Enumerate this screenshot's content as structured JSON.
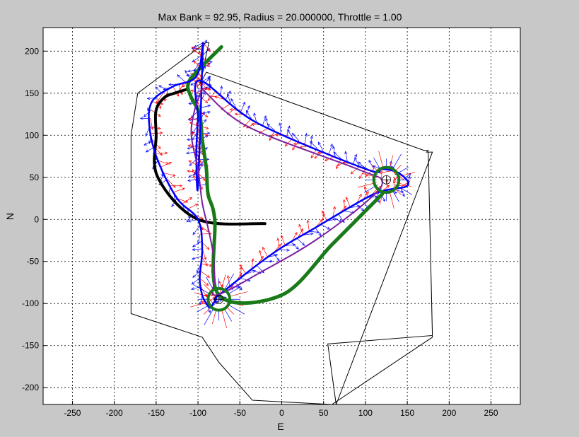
{
  "chart_data": {
    "type": "line",
    "title": "Max Bank = 92.95, Radius = 20.000000, Throttle = 1.00",
    "xlabel": "E",
    "ylabel": "N",
    "xlim": [
      -285,
      285
    ],
    "ylim": [
      -220,
      228
    ],
    "xticks": [
      -250,
      -200,
      -150,
      -100,
      -50,
      0,
      50,
      100,
      150,
      200,
      250
    ],
    "yticks": [
      -200,
      -150,
      -100,
      -50,
      0,
      50,
      100,
      150,
      200
    ],
    "grid": true,
    "colors": {
      "background": "#c8c8c8",
      "axes": "#ffffff",
      "boundary": "#000000",
      "black_path": "#000000",
      "blue_path": "#0000ff",
      "purple_path": "#7a1fa0",
      "green_path": "#1a7a1a",
      "red_vectors": "#ff0000",
      "blue_vectors": "#0000ff",
      "loiter_circle": "#1a7a1a"
    },
    "boundary": {
      "x": [
        -91,
        -172,
        -180,
        -180,
        -95,
        -75,
        -35,
        60,
        180,
        175,
        180,
        55,
        65,
        180,
        173,
        175,
        170,
        -90,
        -98,
        -87,
        -91
      ],
      "y": [
        210,
        150,
        100,
        -112,
        -140,
        -170,
        -215,
        -220,
        -140,
        80,
        -138,
        -148,
        -220,
        80,
        80,
        82,
        82,
        175,
        160,
        210,
        210
      ]
    },
    "series": [
      {
        "name": "",
        "color": "#000000",
        "width": 4,
        "x": [
          -20,
          -100,
          -148,
          -150,
          -150,
          -140,
          -128,
          -112
        ],
        "y": [
          -5,
          0,
          50,
          100,
          130,
          145,
          150,
          155
        ]
      },
      {
        "name": "",
        "color": "#1a7a1a",
        "width": 5,
        "x": [
          -72,
          -102,
          -112,
          -108,
          -98,
          -95,
          -90,
          -88,
          -80,
          -75,
          0,
          60,
          105,
          120
        ],
        "y": [
          205,
          175,
          160,
          145,
          125,
          95,
          60,
          30,
          0,
          -90,
          -90,
          -30,
          15,
          30
        ]
      },
      {
        "name": "",
        "color": "#0000ff",
        "width": 2.5,
        "x": [
          -94,
          -102,
          -130,
          -155,
          -158,
          -148,
          -125,
          -100,
          -95,
          -98,
          -95,
          -90,
          -85,
          -82,
          -78,
          -75,
          -10,
          40,
          110,
          150,
          140,
          120,
          100,
          -30,
          -98,
          -100,
          -102,
          -100,
          -94
        ],
        "y": [
          210,
          170,
          158,
          140,
          110,
          70,
          25,
          0,
          -35,
          -70,
          -90,
          -100,
          -105,
          -100,
          -95,
          -90,
          -40,
          -10,
          30,
          40,
          55,
          60,
          60,
          115,
          165,
          120,
          80,
          40,
          210
        ]
      },
      {
        "name": "",
        "color": "#7a1fa0",
        "width": 2,
        "x": [
          -95,
          -104,
          -108,
          -100,
          -95,
          -88,
          -82,
          -80,
          -78,
          -20,
          40,
          100,
          120,
          90,
          -40,
          -95
        ],
        "y": [
          155,
          130,
          100,
          60,
          20,
          -10,
          -40,
          -70,
          -90,
          -60,
          -25,
          20,
          45,
          60,
          110,
          155
        ]
      }
    ],
    "waypoints": [
      {
        "x": 125,
        "y": 47,
        "loiter_radius": 15
      },
      {
        "x": -75,
        "y": -95,
        "loiter_radius": 13
      }
    ],
    "annotations": []
  }
}
